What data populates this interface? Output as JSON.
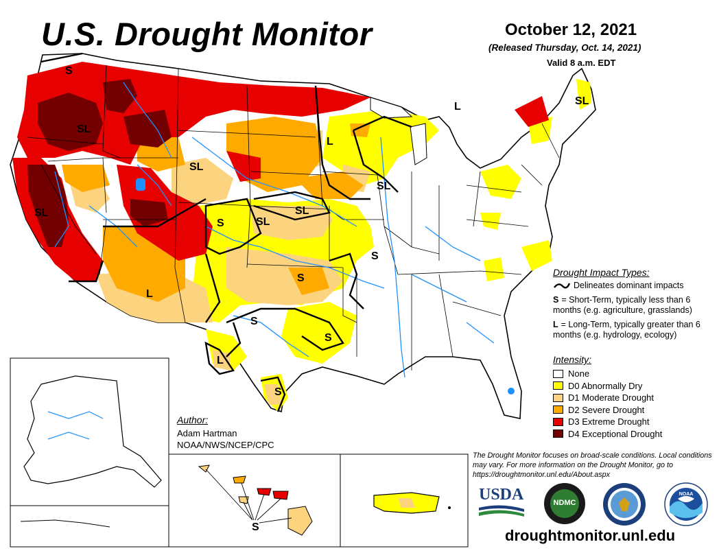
{
  "header": {
    "title": "U.S. Drought Monitor",
    "date": "October 12, 2021",
    "released": "(Released Thursday, Oct. 14, 2021)",
    "valid": "Valid 8 a.m. EDT"
  },
  "impact_types": {
    "title": "Drought Impact Types:",
    "delineates": "Delineates dominant impacts",
    "short_key": "S",
    "short_text": "= Short-Term, typically less than 6 months (e.g. agriculture, grasslands)",
    "long_key": "L",
    "long_text": "= Long-Term, typically greater than 6 months (e.g. hydrology, ecology)"
  },
  "intensity": {
    "title": "Intensity:",
    "levels": [
      {
        "label": "None",
        "color": "#ffffff"
      },
      {
        "label": "D0 Abnormally Dry",
        "color": "#ffff00"
      },
      {
        "label": "D1 Moderate Drought",
        "color": "#fcd37f"
      },
      {
        "label": "D2 Severe Drought",
        "color": "#ffaa00"
      },
      {
        "label": "D3 Extreme Drought",
        "color": "#e60000"
      },
      {
        "label": "D4 Exceptional Drought",
        "color": "#730000"
      }
    ]
  },
  "author": {
    "title": "Author:",
    "name": "Adam Hartman",
    "org": "NOAA/NWS/NCEP/CPC"
  },
  "note": "The Drought Monitor focuses on broad-scale conditions. Local conditions may vary. For more information on the Drought Monitor, go to https://droughtmonitor.unl.edu/About.aspx",
  "website": "droughtmonitor.unl.edu",
  "logos": {
    "usda": "USDA",
    "ndmc": "NDMC",
    "noaa": "NOAA"
  },
  "map_labels": {
    "s": "S",
    "l": "L",
    "sl": "SL"
  },
  "colors": {
    "water": "#1e90ff",
    "boundary": "#000000"
  }
}
